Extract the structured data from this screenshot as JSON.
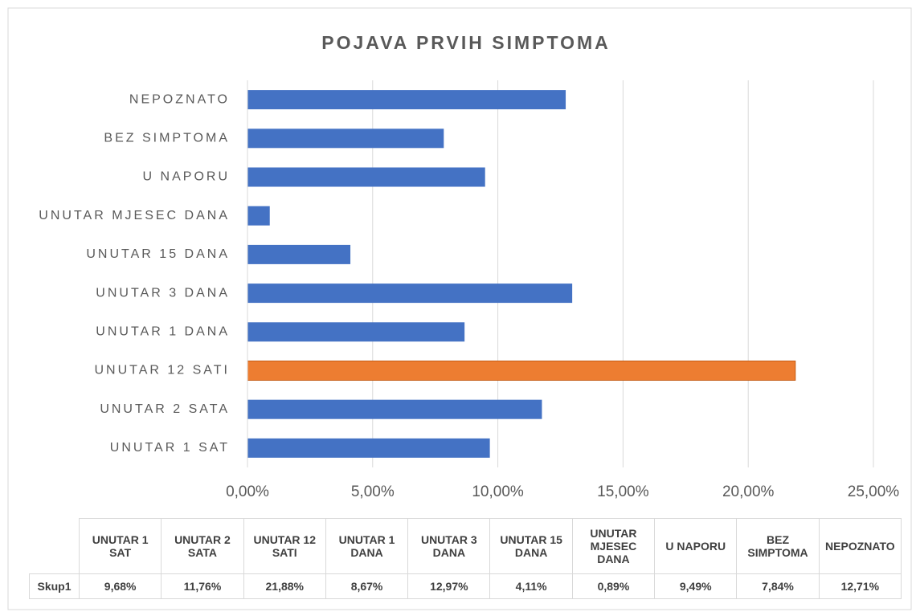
{
  "chart_data": {
    "type": "barh",
    "title": "POJAVA PRVIH SIMPTOMA",
    "categories": [
      "UNUTAR 1 SAT",
      "UNUTAR 2 SATA",
      "UNUTAR 12 SATI",
      "UNUTAR 1 DANA",
      "UNUTAR 3 DANA",
      "UNUTAR 15 DANA",
      "UNUTAR MJESEC DANA",
      "U NAPORU",
      "BEZ SIMPTOMA",
      "NEPOZNATO"
    ],
    "series": [
      {
        "name": "Skup1",
        "color": "#4472c4",
        "point_colors": [
          "#4472c4",
          "#4472c4",
          "#ed7d31",
          "#4472c4",
          "#4472c4",
          "#4472c4",
          "#4472c4",
          "#4472c4",
          "#4472c4",
          "#4472c4"
        ],
        "values": [
          9.68,
          11.76,
          21.88,
          8.67,
          12.97,
          4.11,
          0.89,
          9.49,
          7.84,
          12.71
        ],
        "value_labels": [
          "9,68%",
          "11,76%",
          "21,88%",
          "8,67%",
          "12,97%",
          "4,11%",
          "0,89%",
          "9,49%",
          "7,84%",
          "12,71%"
        ]
      }
    ],
    "xlim": [
      0,
      25
    ],
    "xticks": [
      {
        "value": 0,
        "label": "0,00%"
      },
      {
        "value": 5,
        "label": "5,00%"
      },
      {
        "value": 10,
        "label": "10,00%"
      },
      {
        "value": 15,
        "label": "15,00%"
      },
      {
        "value": 20,
        "label": "20,00%"
      },
      {
        "value": 25,
        "label": "25,00%"
      }
    ],
    "grid": true,
    "data_table": true
  }
}
